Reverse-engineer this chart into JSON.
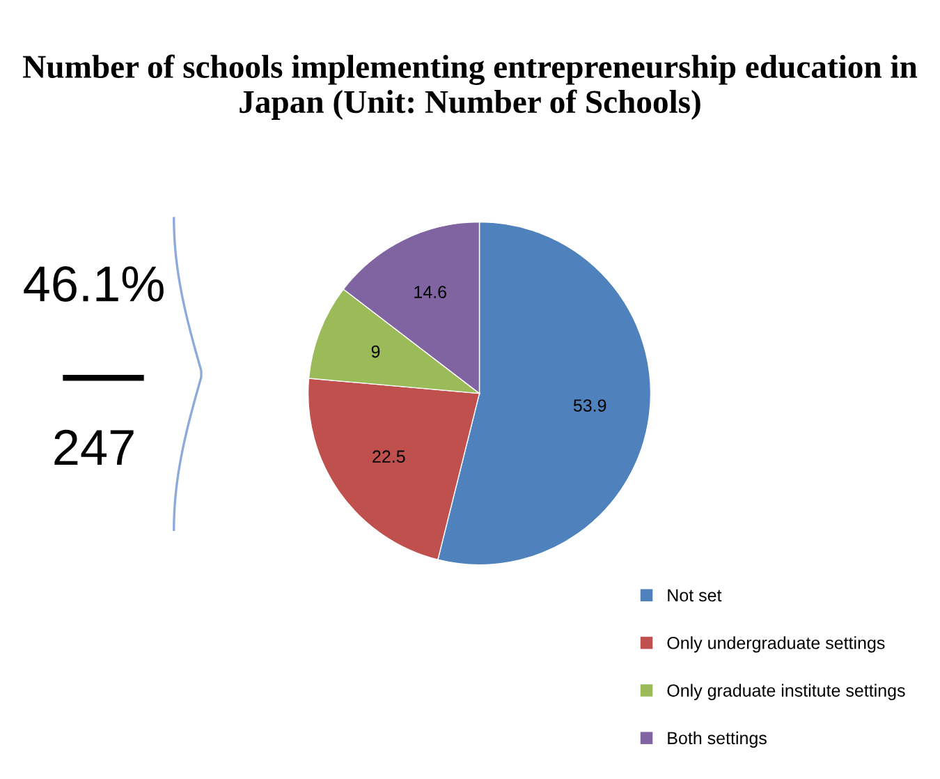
{
  "chart_data": {
    "type": "pie",
    "title": "Number of schools implementing entrepreneurship education in Japan (Unit: Number of Schools)",
    "categories": [
      "Not set",
      "Only undergraduate settings",
      "Only graduate institute settings",
      "Both settings"
    ],
    "values": [
      53.9,
      22.5,
      9,
      14.6
    ],
    "colors": [
      "#4f81bd",
      "#c0504d",
      "#9bbb59",
      "#8064a2"
    ],
    "data_labels": true,
    "legend": "bottom right",
    "annotations": [
      "46.1%",
      "247"
    ]
  }
}
